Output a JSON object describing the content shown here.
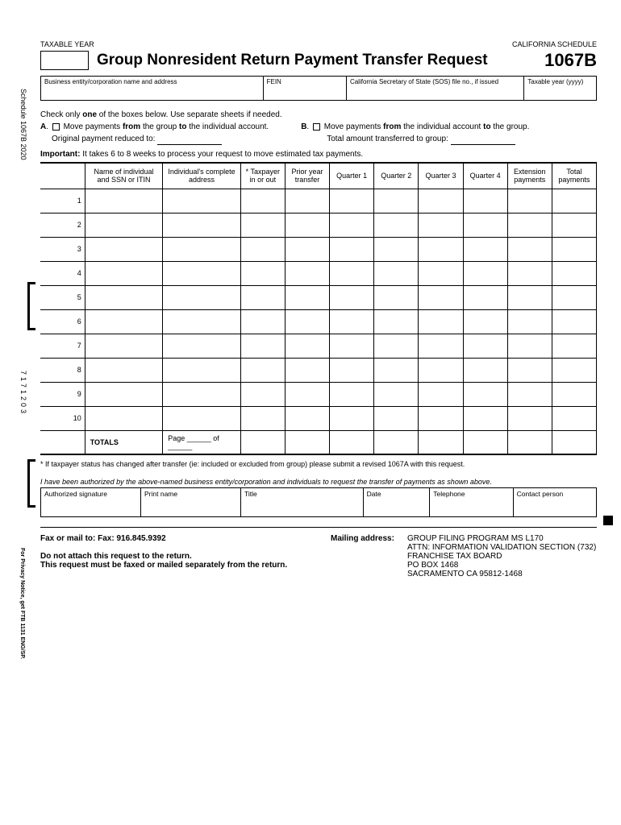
{
  "side": {
    "label1": "Schedule 1067B  2020",
    "label2": "7171203",
    "label3": "For Privacy Notice, get FTB 1131 ENG/SP."
  },
  "header": {
    "left": "TAXABLE YEAR",
    "right": "CALIFORNIA SCHEDULE",
    "title": "Group Nonresident Return Payment Transfer Request",
    "formNumber": "1067B"
  },
  "infoCells": {
    "c1": "Business entity/corporation name and address",
    "c2": "FEIN",
    "c3": "California Secretary of State (SOS) file no., if issued",
    "c4": "Taxable year (yyyy)"
  },
  "instructions": {
    "line1": "Check only one of the boxes below. Use separate sheets if needed.",
    "aLabel": "A",
    "aText": ". ☐ Move payments from the group to the individual account.",
    "bLabel": "B",
    "bText": ". ☐ Move payments from the individual account to the group.",
    "origLabel": "Original payment reduced to:",
    "totalLabel": "Total amount transferred to group:",
    "important": "Important: It takes 6 to 8 weeks to process your request to move estimated tax payments."
  },
  "tableHeaders": {
    "h1": "Name of individual and SSN or ITIN",
    "h2": "Individual's complete address",
    "h3": "* Taxpayer in or out",
    "h4": "Prior year transfer",
    "h5": "Quarter 1",
    "h6": "Quarter 2",
    "h7": "Quarter 3",
    "h8": "Quarter 4",
    "h9": "Extension payments",
    "h10": "Total payments"
  },
  "totals": {
    "label": "TOTALS",
    "page": "Page ______ of ______"
  },
  "footnote": "* If taxpayer status has changed after transfer (ie: included or excluded from group) please submit a revised 1067A with this request.",
  "authText": "I have been authorized by the above-named business entity/corporation and individuals to request the transfer of payments as shown above.",
  "sigHeaders": {
    "s1": "Authorized signature",
    "s2": "Print name",
    "s3": "Title",
    "s4": "Date",
    "s5": "Telephone",
    "s6": "Contact person"
  },
  "bottom": {
    "faxLabel": "Fax or mail to:   Fax: 916.845.9392",
    "noAttach": "Do not attach this request to the return.",
    "separate": "This request must be faxed or mailed separately from the return.",
    "mailLabel": "Mailing address:",
    "addr1": "GROUP FILING PROGRAM   MS L170",
    "addr2": "ATTN: INFORMATION VALIDATION SECTION (732)",
    "addr3": "FRANCHISE TAX BOARD",
    "addr4": "PO BOX 1468",
    "addr5": "SACRAMENTO  CA   95812-1468"
  }
}
